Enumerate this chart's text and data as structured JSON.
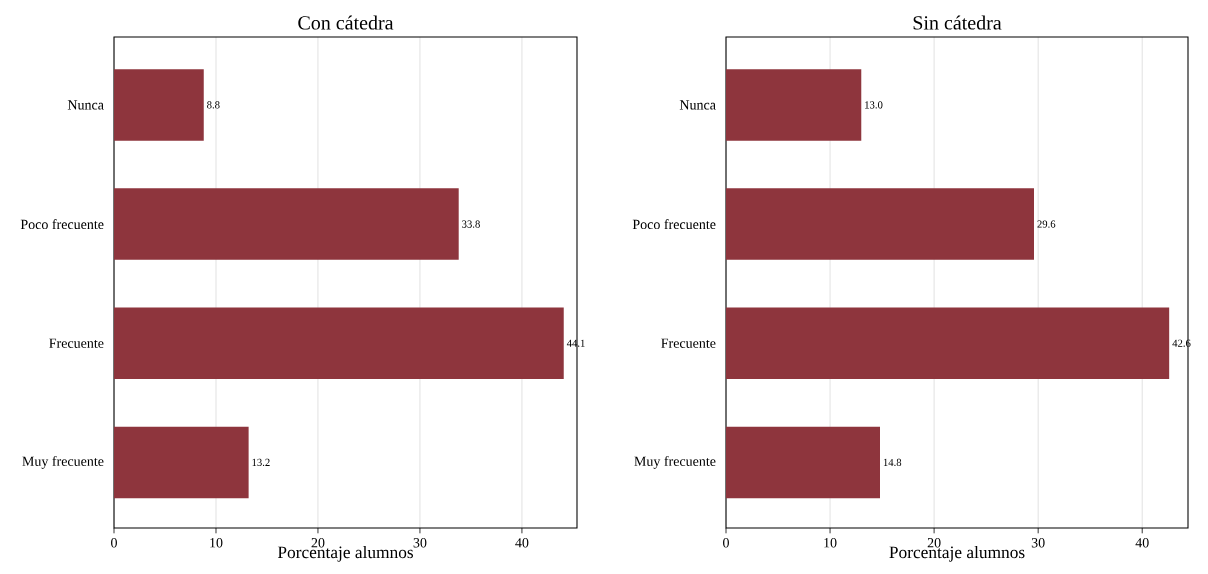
{
  "chart_data": [
    {
      "type": "bar",
      "orientation": "horizontal",
      "title": "Con cátedra",
      "xlabel": "Porcentaje alumnos",
      "categories": [
        "Nunca",
        "Poco frecuente",
        "Frecuente",
        "Muy frecuente"
      ],
      "values": [
        8.8,
        33.8,
        44.1,
        13.2
      ],
      "value_labels": [
        "8.8",
        "33.8",
        "44.1",
        "13.2"
      ],
      "color": "#8e353d",
      "xlim": [
        0,
        45.4
      ],
      "xticks": [
        0,
        10,
        20,
        30,
        40
      ],
      "grid": "x"
    },
    {
      "type": "bar",
      "orientation": "horizontal",
      "title": "Sin cátedra",
      "xlabel": "Porcentaje alumnos",
      "categories": [
        "Nunca",
        "Poco frecuente",
        "Frecuente",
        "Muy frecuente"
      ],
      "values": [
        13.0,
        29.6,
        42.6,
        14.8
      ],
      "value_labels": [
        "13.0",
        "29.6",
        "42.6",
        "14.8"
      ],
      "color": "#8e353d",
      "xlim": [
        0,
        44.4
      ],
      "xticks": [
        0,
        10,
        20,
        30,
        40
      ],
      "grid": "x"
    }
  ]
}
